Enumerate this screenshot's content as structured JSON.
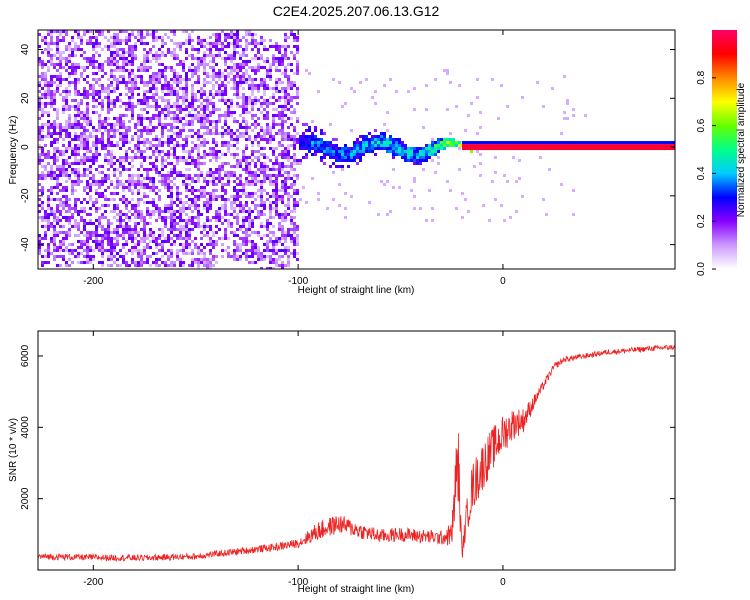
{
  "figure": {
    "title": "C2E4.2025.207.06.13.G12"
  },
  "chart_data": [
    {
      "type": "heatmap",
      "xlabel": "Height of straight line (km)",
      "ylabel": "Frequency (Hz)",
      "xlim": [
        -227,
        84
      ],
      "ylim": [
        -50,
        48
      ],
      "xticks": [
        -200,
        -100,
        0
      ],
      "yticks": [
        -40,
        -20,
        0,
        20,
        40
      ],
      "colorbar": {
        "label": "Normalized spectral amplitude",
        "range": [
          0,
          1
        ],
        "ticks": [
          "0.0",
          "0.2",
          "0.4",
          "0.6",
          "0.8"
        ],
        "colors": [
          "#ffffff",
          "#cc99ff",
          "#8800ff",
          "#0000ff",
          "#00ccff",
          "#00ff88",
          "#66ff00",
          "#ffff00",
          "#ff8800",
          "#ff0000",
          "#ff0066"
        ]
      },
      "description_points": [
        {
          "x": -227,
          "y_spread": 48,
          "amplitude": 0.2
        },
        {
          "x": -150,
          "y_spread": 48,
          "amplitude": 0.2
        },
        {
          "x": -100,
          "y_spread": 48,
          "amplitude": 0.1
        },
        {
          "x": -145,
          "y_spread": 12,
          "amplitude": 0.35
        },
        {
          "x": -80,
          "y_spread": 6,
          "amplitude": 0.45
        },
        {
          "x": -40,
          "y_spread": 4,
          "amplitude": 0.55
        },
        {
          "x": -20,
          "y_spread": 1,
          "amplitude": 0.95
        },
        {
          "x": 84,
          "y_spread": 1,
          "amplitude": 0.95
        }
      ]
    },
    {
      "type": "line",
      "xlabel": "Height of straight line (km)",
      "ylabel": "SNR (10 * v/v)",
      "xlim": [
        -227,
        84
      ],
      "ylim": [
        0,
        6700
      ],
      "xticks": [
        -200,
        -100,
        0
      ],
      "yticks": [
        2000,
        4000,
        6000
      ],
      "series": [
        {
          "color": "#ee2222",
          "x": [
            -227,
            -200,
            -175,
            -150,
            -140,
            -125,
            -110,
            -100,
            -90,
            -80,
            -70,
            -60,
            -50,
            -40,
            -30,
            -25,
            -22,
            -20,
            -18,
            -15,
            -10,
            -5,
            0,
            5,
            10,
            15,
            20,
            25,
            30,
            40,
            50,
            60,
            70,
            84
          ],
          "y": [
            380,
            350,
            340,
            380,
            450,
            550,
            650,
            750,
            1100,
            1300,
            1100,
            950,
            1000,
            950,
            900,
            1000,
            3200,
            400,
            1400,
            2300,
            2900,
            3400,
            3800,
            4100,
            4200,
            4700,
            5200,
            5700,
            5900,
            6000,
            6100,
            6150,
            6200,
            6250
          ],
          "noise": [
            180,
            180,
            180,
            180,
            180,
            200,
            220,
            250,
            550,
            550,
            450,
            400,
            400,
            400,
            400,
            700,
            2600,
            300,
            900,
            1400,
            1400,
            1200,
            1100,
            900,
            700,
            400,
            250,
            180,
            160,
            150,
            150,
            150,
            150,
            150
          ]
        }
      ]
    }
  ]
}
